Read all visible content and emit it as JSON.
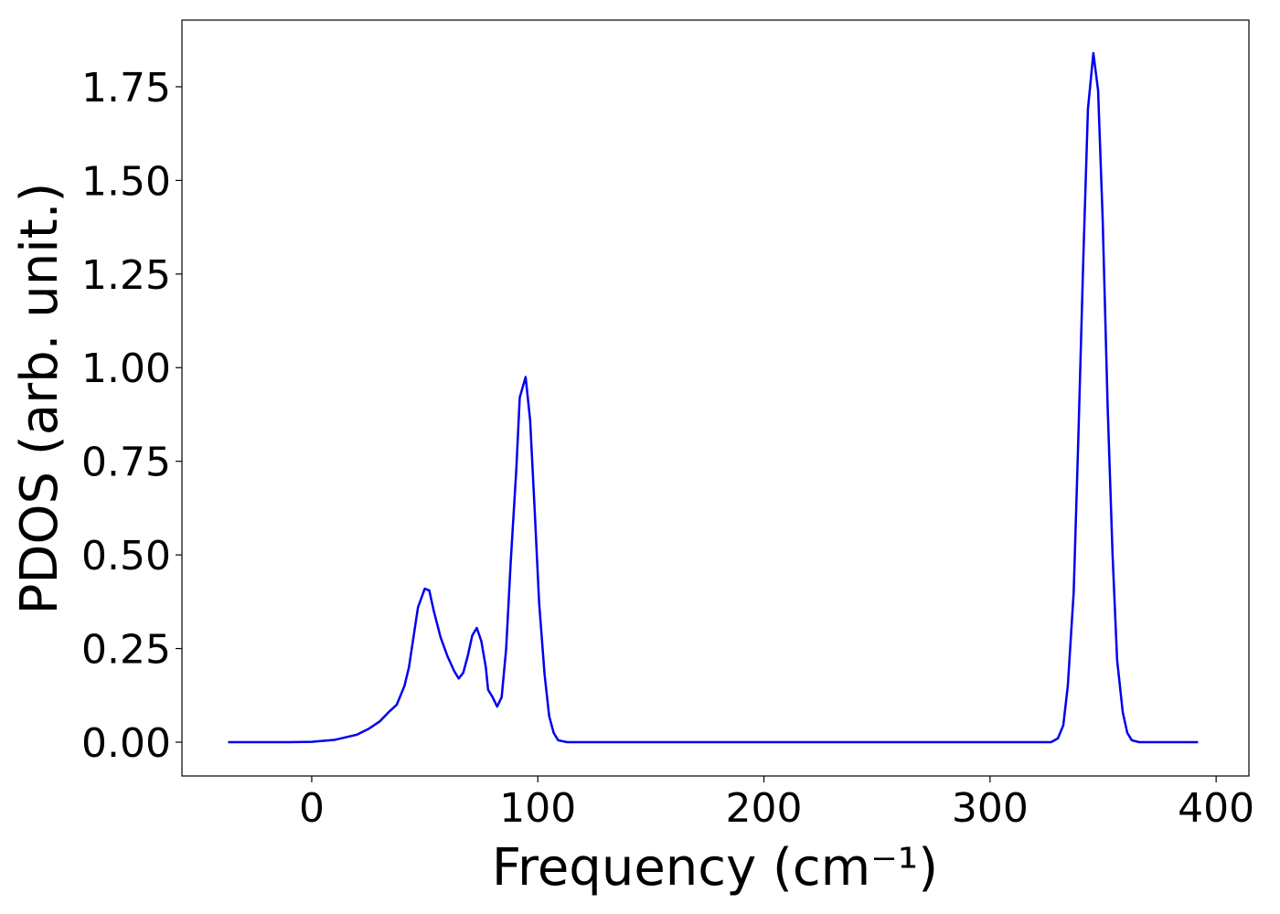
{
  "chart_data": {
    "type": "line",
    "x_label": "Frequency (cm⁻¹)",
    "y_label": "PDOS (arb. unit.)",
    "xlim": [
      -57.4,
      414.5
    ],
    "ylim": [
      -0.0903,
      1.928
    ],
    "xticks": [
      0,
      100,
      200,
      300,
      400
    ],
    "yticks": [
      {
        "value": 0,
        "label": "0.00"
      },
      {
        "value": 0.25,
        "label": "0.25"
      },
      {
        "value": 0.5,
        "label": "0.50"
      },
      {
        "value": 0.75,
        "label": "0.75"
      },
      {
        "value": 1,
        "label": "1.00"
      },
      {
        "value": 1.25,
        "label": "1.25"
      },
      {
        "value": 1.5,
        "label": "1.50"
      },
      {
        "value": 1.75,
        "label": "1.75"
      }
    ],
    "grid": false,
    "x": [
      -37,
      -10,
      0,
      10,
      20,
      25,
      30,
      34,
      37.6,
      41,
      43,
      45,
      47,
      50,
      52,
      54,
      57,
      60,
      63,
      65,
      67,
      69,
      71,
      73,
      75,
      77,
      78,
      80,
      82,
      84,
      86,
      88,
      90.5,
      92,
      94.6,
      96.6,
      98.6,
      100.6,
      103,
      105,
      107,
      109,
      113,
      200,
      327,
      330,
      332.4,
      334.4,
      337,
      339,
      341.3,
      343.3,
      345.7,
      347.8,
      349.8,
      352,
      354.2,
      356.2,
      358.7,
      360.7,
      362.7,
      366,
      392
    ],
    "series": [
      {
        "name": "PDOS",
        "color": "#0000ee",
        "values": [
          0,
          0,
          0.001,
          0.006,
          0.02,
          0.035,
          0.055,
          0.08,
          0.1,
          0.15,
          0.2,
          0.28,
          0.36,
          0.41,
          0.405,
          0.35,
          0.28,
          0.23,
          0.19,
          0.17,
          0.185,
          0.23,
          0.285,
          0.305,
          0.27,
          0.2,
          0.14,
          0.12,
          0.095,
          0.12,
          0.25,
          0.48,
          0.73,
          0.92,
          0.975,
          0.86,
          0.62,
          0.37,
          0.18,
          0.07,
          0.025,
          0.005,
          0,
          0,
          0,
          0.01,
          0.045,
          0.15,
          0.4,
          0.8,
          1.3,
          1.69,
          1.84,
          1.74,
          1.4,
          0.9,
          0.5,
          0.22,
          0.08,
          0.025,
          0.005,
          0,
          0
        ]
      }
    ]
  }
}
